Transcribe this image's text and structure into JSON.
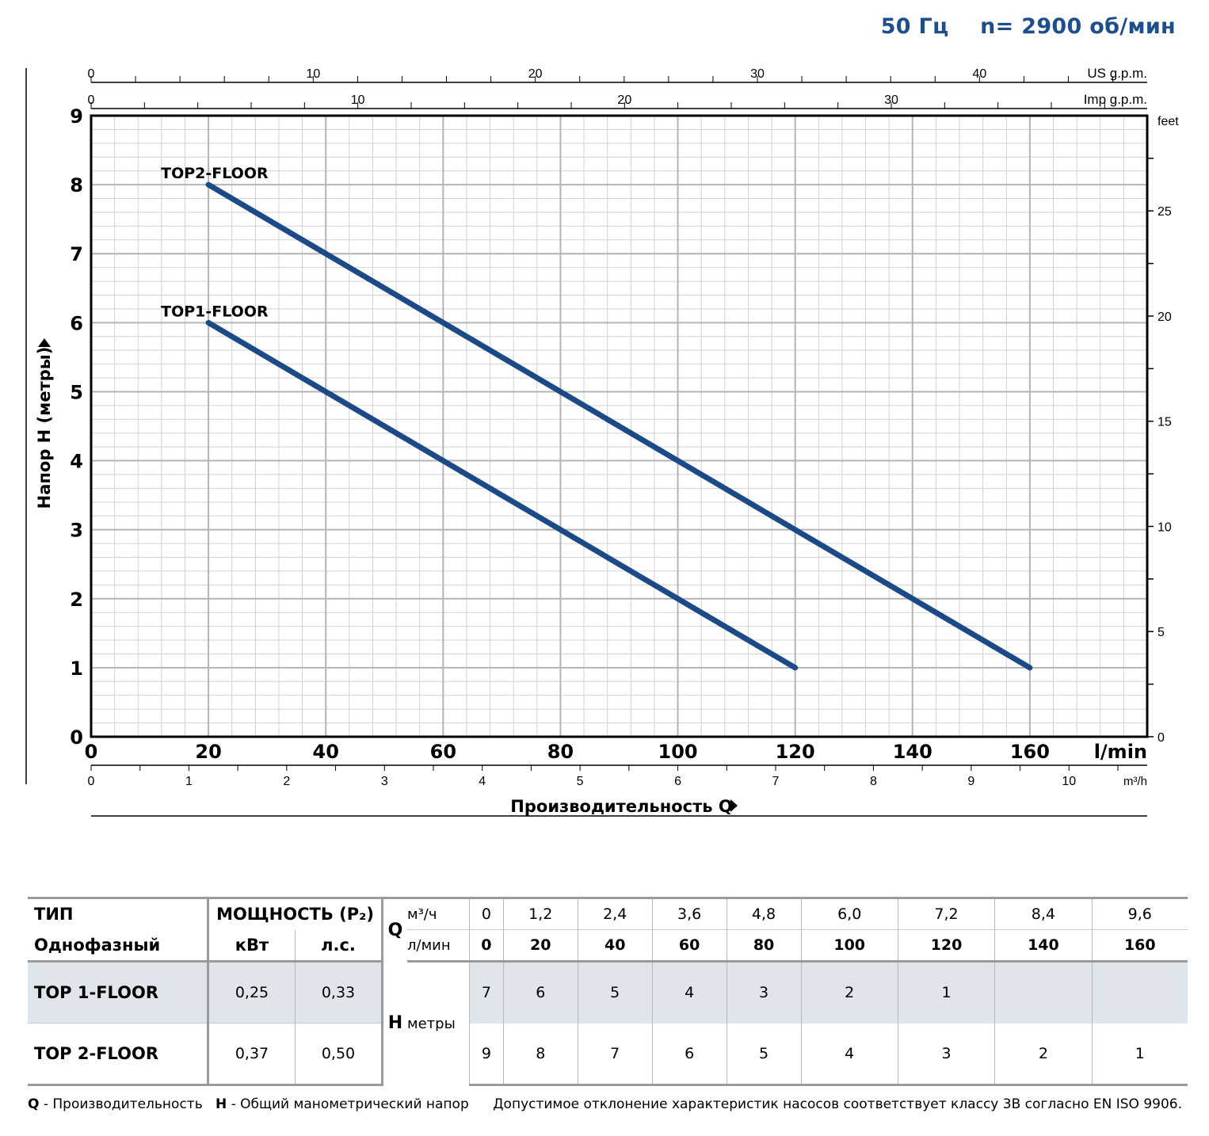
{
  "header": {
    "freq": "50 Гц",
    "speed": "n= 2900 об/мин"
  },
  "chart_data": {
    "type": "line",
    "x_unit_label": "l/min",
    "xlim": [
      0,
      180
    ],
    "ylim": [
      0,
      9
    ],
    "x_ticks": [
      "0",
      "20",
      "40",
      "60",
      "80",
      "100",
      "120",
      "140",
      "160"
    ],
    "y_ticks": [
      "0",
      "1",
      "2",
      "3",
      "4",
      "5",
      "6",
      "7",
      "8",
      "9"
    ],
    "xlabel": "Производительность Q",
    "ylabel": "Напор H (метры)",
    "top_axis_us": {
      "unit": "US g.p.m.",
      "ticks": [
        "0",
        "10",
        "20",
        "30",
        "40"
      ],
      "gpm_per_lmin": 0.26417
    },
    "top_axis_imp": {
      "unit": "Imp g.p.m.",
      "ticks": [
        "0",
        "10",
        "20",
        "30"
      ],
      "gpm_per_lmin": 0.21997
    },
    "bottom_axis_m3h": {
      "unit": "m³/h",
      "ticks": [
        "0",
        "1",
        "2",
        "3",
        "4",
        "5",
        "6",
        "7",
        "8",
        "9",
        "10"
      ],
      "m3h_per_lmin": 0.06
    },
    "right_axis_feet": {
      "unit": "feet",
      "ticks": [
        "0",
        "5",
        "10",
        "15",
        "20",
        "25"
      ],
      "feet_per_m": 3.28084
    },
    "series": [
      {
        "name": "TOP2-FLOOR",
        "x": [
          20,
          160
        ],
        "y": [
          8,
          1
        ]
      },
      {
        "name": "TOP1-FLOOR",
        "x": [
          20,
          120
        ],
        "y": [
          6,
          1
        ]
      }
    ]
  },
  "table": {
    "h_type": "ТИП",
    "h_phase": "Однофазный",
    "h_power": "МОЩНОСТЬ (P₂)",
    "h_kw": "кВт",
    "h_hp": "л.с.",
    "q_letter": "Q",
    "q_unit_m3": "м³/ч",
    "q_unit_l": "л/мин",
    "q_m3": [
      "0",
      "1,2",
      "2,4",
      "3,6",
      "4,8",
      "6,0",
      "7,2",
      "8,4",
      "9,6"
    ],
    "q_l": [
      "0",
      "20",
      "40",
      "60",
      "80",
      "100",
      "120",
      "140",
      "160"
    ],
    "h_letter": "H",
    "h_unit": "метры",
    "rows": [
      {
        "name": "TOP 1-FLOOR",
        "kw": "0,25",
        "hp": "0,33",
        "h": [
          "7",
          "6",
          "5",
          "4",
          "3",
          "2",
          "1",
          "",
          ""
        ]
      },
      {
        "name": "TOP 2-FLOOR",
        "kw": "0,37",
        "hp": "0,50",
        "h": [
          "9",
          "8",
          "7",
          "6",
          "5",
          "4",
          "3",
          "2",
          "1"
        ]
      }
    ]
  },
  "footer": {
    "q_letter": "Q",
    "q_text": " - Производительность",
    "h_letter": "H",
    "h_text": " - Общий манометрический напор",
    "note": "Допустимое отклонение характеристик насосов соответствует классу 3B согласно EN ISO 9906."
  }
}
